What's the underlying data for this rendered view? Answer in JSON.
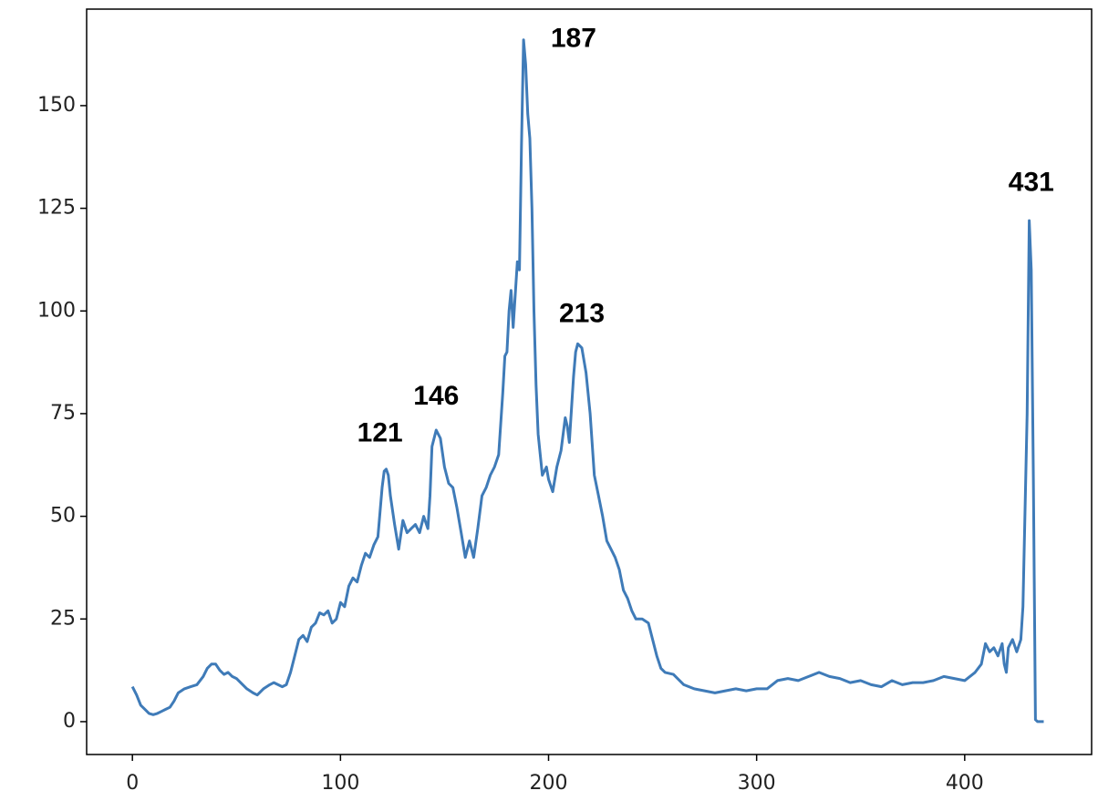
{
  "chart_data": {
    "type": "line",
    "color": "#3f7bb8",
    "x": [
      0,
      2,
      4,
      6,
      8,
      10,
      12,
      14,
      16,
      18,
      20,
      22,
      25,
      28,
      31,
      34,
      36,
      38,
      40,
      42,
      44,
      46,
      48,
      50,
      52,
      55,
      58,
      60,
      63,
      66,
      68,
      70,
      72,
      74,
      76,
      78,
      80,
      82,
      84,
      86,
      88,
      90,
      92,
      94,
      96,
      98,
      100,
      102,
      104,
      106,
      108,
      110,
      112,
      114,
      116,
      118,
      119,
      120,
      121,
      122,
      123,
      124,
      126,
      128,
      130,
      132,
      134,
      136,
      138,
      140,
      142,
      143,
      144,
      146,
      148,
      150,
      152,
      154,
      156,
      158,
      160,
      162,
      164,
      166,
      168,
      170,
      172,
      174,
      176,
      178,
      179,
      180,
      181,
      182,
      183,
      184,
      185,
      186,
      187,
      188,
      189,
      190,
      191,
      192,
      193,
      194,
      195,
      196,
      197,
      199,
      200,
      202,
      204,
      206,
      208,
      209,
      210,
      212,
      213,
      214,
      216,
      218,
      220,
      222,
      224,
      226,
      228,
      230,
      232,
      234,
      236,
      238,
      240,
      242,
      245,
      248,
      250,
      252,
      254,
      256,
      260,
      265,
      270,
      275,
      280,
      285,
      290,
      295,
      300,
      305,
      310,
      315,
      320,
      325,
      330,
      335,
      340,
      345,
      350,
      355,
      360,
      365,
      370,
      375,
      380,
      385,
      390,
      395,
      400,
      405,
      408,
      410,
      412,
      414,
      416,
      418,
      419,
      420,
      421,
      423,
      425,
      427,
      428,
      430,
      431,
      432,
      433,
      434,
      435,
      438
    ],
    "values": [
      8.5,
      6.5,
      4,
      3,
      2,
      1.7,
      2,
      2.5,
      3,
      3.5,
      5,
      7,
      8,
      8.5,
      9,
      11,
      13,
      14,
      14,
      12.5,
      11.5,
      12,
      11,
      10.5,
      9.5,
      8,
      7,
      6.5,
      8,
      9,
      9.5,
      9,
      8.5,
      9,
      12,
      16,
      20,
      21,
      19.5,
      23,
      24,
      26.5,
      26,
      27,
      24,
      25,
      29,
      28,
      33,
      35,
      34,
      38,
      41,
      40,
      43,
      45,
      51,
      57,
      61,
      61.5,
      60,
      55,
      48,
      42,
      49,
      46,
      47,
      48,
      46,
      50,
      47,
      55,
      67,
      71,
      69,
      62,
      58,
      57,
      52,
      46,
      40,
      44,
      40,
      47,
      55,
      57,
      60,
      62,
      65,
      80,
      89,
      90,
      100,
      105,
      96,
      104,
      112,
      110,
      140,
      166,
      160,
      148,
      142,
      125,
      100,
      82,
      70,
      65,
      60,
      62,
      59,
      56,
      62,
      66,
      74,
      72,
      68,
      84,
      90,
      92,
      91,
      85,
      75,
      60,
      55,
      50,
      44,
      42,
      40,
      37,
      32,
      30,
      27,
      25,
      25,
      24,
      20,
      16,
      13,
      12,
      11.5,
      9,
      8,
      7.5,
      7,
      7.5,
      8,
      7.5,
      8,
      8,
      10,
      10.5,
      10,
      11,
      12,
      11,
      10.5,
      9.5,
      10,
      9,
      8.5,
      10,
      9,
      9.5,
      9.5,
      10,
      11,
      10.5,
      10,
      12,
      14,
      19,
      17,
      18,
      16,
      19,
      14,
      12,
      18,
      20,
      17,
      20,
      28,
      75,
      122,
      110,
      60,
      0.5,
      0,
      0
    ],
    "xlim": [
      -22,
      461
    ],
    "ylim": [
      -8,
      173.5
    ],
    "xticks": [
      0,
      100,
      200,
      300,
      400
    ],
    "yticks": [
      0,
      25,
      50,
      75,
      100,
      125,
      150
    ],
    "annotations": [
      {
        "text": "121",
        "x": 119,
        "y": 70
      },
      {
        "text": "146",
        "x": 146,
        "y": 79
      },
      {
        "text": "187",
        "x": 212,
        "y": 166
      },
      {
        "text": "213",
        "x": 216,
        "y": 99
      },
      {
        "text": "431",
        "x": 432,
        "y": 131
      }
    ]
  }
}
